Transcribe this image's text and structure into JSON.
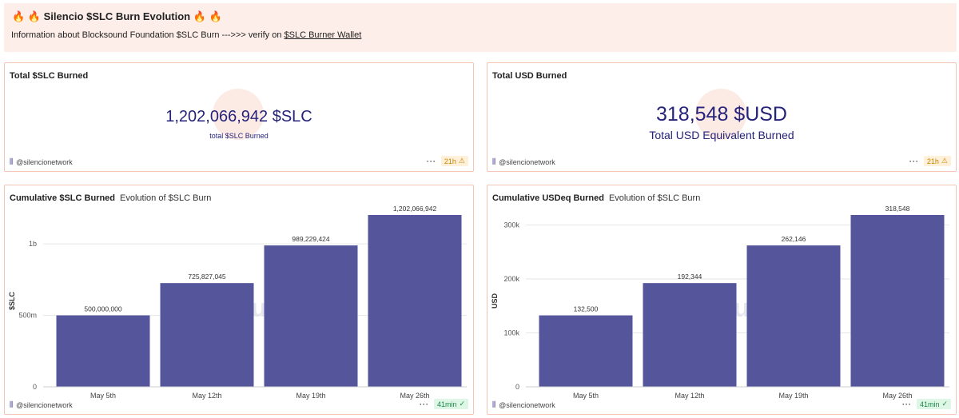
{
  "header": {
    "title": "Silencio $SLC Burn Evolution",
    "flame_icon": "🔥",
    "desc_prefix": "Information about Blocksound Foundation $SLC Burn --->>> verify on ",
    "link_text": "$SLC Burner Wallet"
  },
  "counter_slc": {
    "title": "Total $SLC Burned",
    "value": "1,202,066,942 $SLC",
    "label": "total $SLC Burned",
    "author": "@silencionetwork",
    "age": "21h",
    "dots": "···"
  },
  "counter_usd": {
    "title": "Total USD Burned",
    "value": "318,548 $USD",
    "label": "Total USD Equivalent Burned",
    "author": "@silencionetwork",
    "age": "21h",
    "dots": "···"
  },
  "chart_slc_card": {
    "title": "Cumulative $SLC Burned",
    "subtitle": "Evolution of $SLC Burn",
    "author": "@silencionetwork",
    "age": "41min",
    "dots": "···",
    "watermark": "Dune"
  },
  "chart_usd_card": {
    "title": "Cumulative USDeq Burned",
    "subtitle": "Evolution of $SLC Burn",
    "author": "@silencionetwork",
    "age": "41min",
    "dots": "···",
    "watermark": "Dune"
  },
  "colors": {
    "bar": "#55559c",
    "accent": "#26237a",
    "border": "#f2c4b4",
    "header_bg": "#fdeee9"
  },
  "chart_data": [
    {
      "type": "bar",
      "categories": [
        "May 5th",
        "May 12th",
        "May 19th",
        "May 26th"
      ],
      "values": [
        500000000,
        725827045,
        989229424,
        1202066942
      ],
      "data_labels": [
        "500,000,000",
        "725,827,045",
        "989,229,424",
        "1,202,066,942"
      ],
      "ylabel": "$SLC",
      "yticks": [
        0,
        500000000,
        1000000000
      ],
      "ytick_labels": [
        "0",
        "500m",
        "1b"
      ],
      "ylim": [
        0,
        1202066942
      ],
      "grid": true
    },
    {
      "type": "bar",
      "categories": [
        "May 5th",
        "May 12th",
        "May 19th",
        "May 26th"
      ],
      "values": [
        132500,
        192344,
        262146,
        318548
      ],
      "data_labels": [
        "132,500",
        "192,344",
        "262,146",
        "318,548"
      ],
      "ylabel": "USD",
      "yticks": [
        0,
        100000,
        200000,
        300000
      ],
      "ytick_labels": [
        "0",
        "100k",
        "200k",
        "300k"
      ],
      "ylim": [
        0,
        318548
      ],
      "grid": true
    }
  ]
}
